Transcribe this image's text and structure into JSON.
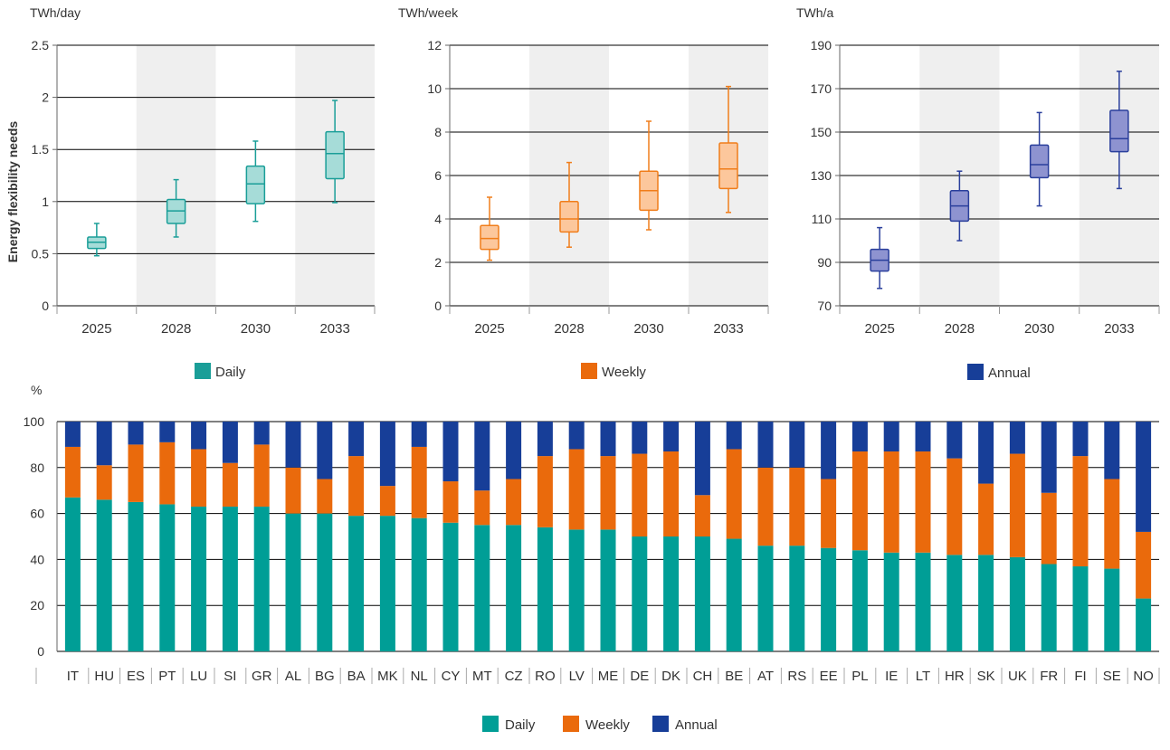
{
  "colors": {
    "daily_fill": "#a6dcd8",
    "daily_stroke": "#1a9e98",
    "daily_solid": "#009e96",
    "weekly_fill": "#fcc79c",
    "weekly_stroke": "#f07d1a",
    "weekly_solid": "#ea6a0c",
    "annual_fill": "#8e93d0",
    "annual_stroke": "#2a3f9c",
    "annual_solid": "#173e98",
    "band": "#efefef",
    "grid": "#000000",
    "axis_text": "#333333"
  },
  "chart_data": [
    {
      "type": "box",
      "id": "daily",
      "unit_label": "TWh/day",
      "ylabel": "Energy flexibility needs",
      "ylim": [
        0,
        2.5
      ],
      "yticks": [
        0,
        0.5,
        1,
        1.5,
        2,
        2.5
      ],
      "ytick_labels": [
        "0",
        "0.5",
        "1",
        "1.5",
        "2",
        "2.5"
      ],
      "categories": [
        "2025",
        "2028",
        "2030",
        "2033"
      ],
      "shaded_bands": [
        false,
        true,
        false,
        true
      ],
      "boxes": [
        {
          "min": 0.48,
          "q1": 0.55,
          "median": 0.61,
          "q3": 0.66,
          "max": 0.79
        },
        {
          "min": 0.66,
          "q1": 0.79,
          "median": 0.91,
          "q3": 1.02,
          "max": 1.21
        },
        {
          "min": 0.81,
          "q1": 0.98,
          "median": 1.17,
          "q3": 1.34,
          "max": 1.58
        },
        {
          "min": 0.99,
          "q1": 1.22,
          "median": 1.46,
          "q3": 1.67,
          "max": 1.97
        }
      ],
      "legend": "Daily",
      "series_color_key": "daily"
    },
    {
      "type": "box",
      "id": "weekly",
      "unit_label": "TWh/week",
      "ylim": [
        0,
        12
      ],
      "yticks": [
        0,
        2,
        4,
        6,
        8,
        10,
        12
      ],
      "ytick_labels": [
        "0",
        "2",
        "4",
        "6",
        "8",
        "10",
        "12"
      ],
      "categories": [
        "2025",
        "2028",
        "2030",
        "2033"
      ],
      "shaded_bands": [
        false,
        true,
        false,
        true
      ],
      "boxes": [
        {
          "min": 2.1,
          "q1": 2.6,
          "median": 3.1,
          "q3": 3.7,
          "max": 5.0
        },
        {
          "min": 2.7,
          "q1": 3.4,
          "median": 4.0,
          "q3": 4.8,
          "max": 6.6
        },
        {
          "min": 3.5,
          "q1": 4.4,
          "median": 5.3,
          "q3": 6.2,
          "max": 8.5
        },
        {
          "min": 4.3,
          "q1": 5.4,
          "median": 6.3,
          "q3": 7.5,
          "max": 10.1
        }
      ],
      "legend": "Weekly",
      "series_color_key": "weekly"
    },
    {
      "type": "box",
      "id": "annual",
      "unit_label": "TWh/a",
      "ylim": [
        70,
        190
      ],
      "yticks": [
        70,
        90,
        110,
        130,
        150,
        170,
        190
      ],
      "ytick_labels": [
        "70",
        "90",
        "110",
        "130",
        "150",
        "170",
        "190"
      ],
      "categories": [
        "2025",
        "2028",
        "2030",
        "2033"
      ],
      "shaded_bands": [
        false,
        true,
        false,
        true
      ],
      "boxes": [
        {
          "min": 78,
          "q1": 86,
          "median": 91,
          "q3": 96,
          "max": 106
        },
        {
          "min": 100,
          "q1": 109,
          "median": 116,
          "q3": 123,
          "max": 132
        },
        {
          "min": 116,
          "q1": 129,
          "median": 135,
          "q3": 144,
          "max": 159
        },
        {
          "min": 124,
          "q1": 141,
          "median": 147,
          "q3": 160,
          "max": 178
        }
      ],
      "legend": "Annual",
      "series_color_key": "annual"
    },
    {
      "type": "stacked-bar",
      "id": "share",
      "unit_label": "%",
      "ylim": [
        0,
        100
      ],
      "yticks": [
        0,
        20,
        40,
        60,
        80,
        100
      ],
      "ytick_labels": [
        "0",
        "20",
        "40",
        "60",
        "80",
        "100"
      ],
      "categories": [
        "IT",
        "HU",
        "ES",
        "PT",
        "LU",
        "SI",
        "GR",
        "AL",
        "BG",
        "BA",
        "MK",
        "NL",
        "CY",
        "MT",
        "CZ",
        "RO",
        "LV",
        "ME",
        "DE",
        "DK",
        "CH",
        "BE",
        "AT",
        "RS",
        "EE",
        "PL",
        "IE",
        "LT",
        "HR",
        "SK",
        "UK",
        "FR",
        "FI",
        "SE",
        "NO"
      ],
      "series": [
        {
          "name": "Daily",
          "color_key": "daily_solid",
          "values": [
            67,
            66,
            65,
            64,
            63,
            63,
            63,
            60,
            60,
            59,
            59,
            58,
            56,
            55,
            55,
            54,
            53,
            53,
            50,
            50,
            50,
            49,
            46,
            46,
            45,
            44,
            43,
            43,
            42,
            42,
            41,
            38,
            37,
            36,
            23
          ]
        },
        {
          "name": "Weekly",
          "color_key": "weekly_solid",
          "values": [
            22,
            15,
            25,
            27,
            25,
            19,
            27,
            20,
            15,
            26,
            13,
            31,
            18,
            15,
            20,
            31,
            35,
            32,
            36,
            37,
            18,
            39,
            34,
            34,
            30,
            43,
            44,
            44,
            42,
            31,
            45,
            31,
            48,
            39,
            29
          ]
        },
        {
          "name": "Annual",
          "color_key": "annual_solid",
          "values": [
            11,
            19,
            10,
            9,
            12,
            18,
            10,
            20,
            25,
            15,
            28,
            11,
            26,
            30,
            25,
            15,
            12,
            15,
            14,
            13,
            32,
            12,
            20,
            20,
            25,
            13,
            13,
            13,
            16,
            27,
            14,
            31,
            15,
            25,
            48
          ]
        }
      ],
      "legend": [
        "Daily",
        "Weekly",
        "Annual"
      ]
    }
  ]
}
